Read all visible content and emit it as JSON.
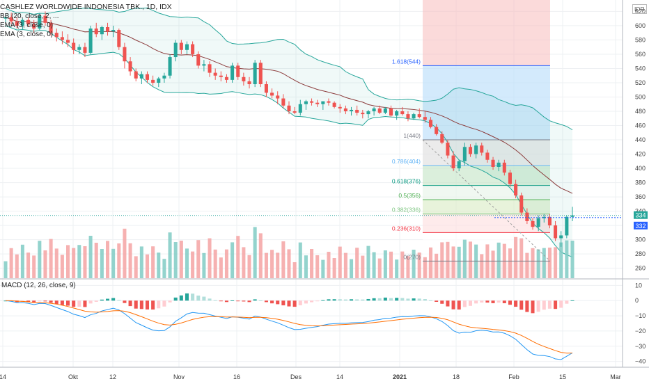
{
  "header": {
    "title": "CASHLEZ WORLDWIDE INDONESIA TBK., 1D, IDX",
    "currency": "IDR",
    "studies": [
      "BB (20, close, 2, ...",
      "EMA (3, close, 0)",
      "EMA (3, close, 0)"
    ]
  },
  "price_axis": {
    "ticks": [
      "620",
      "600",
      "580",
      "560",
      "540",
      "520",
      "500",
      "480",
      "460",
      "440",
      "420",
      "400",
      "380",
      "360",
      "340",
      "320",
      "300",
      "280",
      "260"
    ],
    "last_price_label": "334",
    "prev_price_label": "332"
  },
  "macd": {
    "label": "MACD (12, 26, close, 9)",
    "ticks": [
      "10",
      "0",
      "−10",
      "−20",
      "−30",
      "−40"
    ]
  },
  "time_axis": {
    "labels": [
      "14",
      "Okt",
      "12",
      "Nov",
      "16",
      "Des",
      "14",
      "2021",
      "18",
      "Feb",
      "15",
      "Mar"
    ]
  },
  "fibonacci": {
    "levels": [
      {
        "label": "1.618(544)",
        "price": 544,
        "color": "#2962ff"
      },
      {
        "label": "1(440)",
        "price": 440,
        "color": "#787b86"
      },
      {
        "label": "0.786(404)",
        "price": 404,
        "color": "#64b5f6"
      },
      {
        "label": "0.618(376)",
        "price": 376,
        "color": "#089981"
      },
      {
        "label": "0.5(356)",
        "price": 356,
        "color": "#4caf50"
      },
      {
        "label": "0.382(336)",
        "price": 336,
        "color": "#81c784"
      },
      {
        "label": "0.236(310)",
        "price": 310,
        "color": "#f23645"
      },
      {
        "label": "0(270)",
        "price": 270,
        "color": "#787b86"
      }
    ]
  },
  "colors": {
    "up": "#26a69a",
    "down": "#ef5350",
    "band": "#26a69a",
    "mid": "#8b3a3a",
    "macd_line": "#2196f3",
    "signal_line": "#ff6d00"
  },
  "chart_data": {
    "type": "candlestick",
    "title": "CASHLEZ WORLDWIDE INDONESIA TBK., 1D, IDX",
    "ylim": [
      246,
      636
    ],
    "note_units": "IDR",
    "ohlc": [
      [
        610,
        616,
        604,
        612
      ],
      [
        612,
        618,
        602,
        606
      ],
      [
        606,
        612,
        596,
        600
      ],
      [
        600,
        610,
        594,
        608
      ],
      [
        608,
        612,
        598,
        602
      ],
      [
        602,
        608,
        590,
        596
      ],
      [
        596,
        618,
        594,
        614
      ],
      [
        614,
        620,
        600,
        604
      ],
      [
        604,
        608,
        586,
        590
      ],
      [
        590,
        596,
        578,
        584
      ],
      [
        584,
        592,
        574,
        580
      ],
      [
        580,
        588,
        570,
        576
      ],
      [
        576,
        582,
        560,
        566
      ],
      [
        566,
        574,
        560,
        570
      ],
      [
        570,
        576,
        556,
        562
      ],
      [
        562,
        600,
        560,
        596
      ],
      [
        596,
        604,
        584,
        588
      ],
      [
        588,
        600,
        580,
        598
      ],
      [
        598,
        604,
        586,
        592
      ],
      [
        592,
        600,
        584,
        594
      ],
      [
        594,
        596,
        566,
        570
      ],
      [
        570,
        576,
        540,
        550
      ],
      [
        550,
        556,
        530,
        536
      ],
      [
        536,
        540,
        522,
        526
      ],
      [
        526,
        536,
        518,
        532
      ],
      [
        532,
        536,
        520,
        524
      ],
      [
        524,
        530,
        516,
        520
      ],
      [
        520,
        528,
        514,
        526
      ],
      [
        526,
        534,
        520,
        530
      ],
      [
        530,
        560,
        526,
        556
      ],
      [
        556,
        580,
        550,
        576
      ],
      [
        576,
        580,
        560,
        566
      ],
      [
        566,
        578,
        560,
        574
      ],
      [
        574,
        578,
        556,
        560
      ],
      [
        560,
        564,
        540,
        544
      ],
      [
        544,
        552,
        536,
        546
      ],
      [
        546,
        550,
        528,
        534
      ],
      [
        534,
        540,
        524,
        530
      ],
      [
        530,
        536,
        522,
        528
      ],
      [
        528,
        532,
        520,
        524
      ],
      [
        524,
        548,
        520,
        544
      ],
      [
        544,
        548,
        524,
        528
      ],
      [
        528,
        534,
        516,
        522
      ],
      [
        522,
        528,
        512,
        518
      ],
      [
        518,
        552,
        514,
        548
      ],
      [
        548,
        552,
        514,
        518
      ],
      [
        518,
        522,
        500,
        506
      ],
      [
        506,
        512,
        498,
        502
      ],
      [
        502,
        508,
        490,
        498
      ],
      [
        498,
        504,
        484,
        488
      ],
      [
        488,
        494,
        476,
        480
      ],
      [
        480,
        486,
        476,
        478
      ],
      [
        478,
        496,
        474,
        490
      ],
      [
        490,
        496,
        482,
        494
      ],
      [
        494,
        498,
        488,
        492
      ],
      [
        492,
        496,
        486,
        490
      ],
      [
        490,
        494,
        482,
        494
      ],
      [
        494,
        498,
        488,
        492
      ],
      [
        492,
        494,
        484,
        486
      ],
      [
        486,
        490,
        478,
        484
      ],
      [
        484,
        488,
        476,
        480
      ],
      [
        480,
        486,
        474,
        482
      ],
      [
        482,
        488,
        474,
        478
      ],
      [
        478,
        482,
        470,
        476
      ],
      [
        476,
        482,
        470,
        480
      ],
      [
        480,
        486,
        474,
        484
      ],
      [
        484,
        488,
        476,
        478
      ],
      [
        478,
        486,
        476,
        484
      ],
      [
        484,
        488,
        472,
        474
      ],
      [
        474,
        482,
        468,
        480
      ],
      [
        480,
        486,
        474,
        476
      ],
      [
        476,
        480,
        466,
        470
      ],
      [
        470,
        478,
        468,
        476
      ],
      [
        476,
        484,
        470,
        472
      ],
      [
        472,
        480,
        464,
        468
      ],
      [
        468,
        472,
        456,
        458
      ],
      [
        458,
        462,
        446,
        448
      ],
      [
        448,
        452,
        434,
        436
      ],
      [
        436,
        440,
        414,
        418
      ],
      [
        418,
        424,
        396,
        400
      ],
      [
        400,
        412,
        396,
        410
      ],
      [
        410,
        436,
        404,
        430
      ],
      [
        430,
        434,
        416,
        420
      ],
      [
        420,
        436,
        414,
        432
      ],
      [
        432,
        436,
        418,
        422
      ],
      [
        422,
        426,
        408,
        412
      ],
      [
        412,
        416,
        398,
        402
      ],
      [
        402,
        412,
        396,
        408
      ],
      [
        408,
        412,
        390,
        394
      ],
      [
        394,
        398,
        374,
        378
      ],
      [
        378,
        384,
        358,
        362
      ],
      [
        362,
        366,
        334,
        338
      ],
      [
        338,
        344,
        322,
        326
      ],
      [
        326,
        330,
        314,
        318
      ],
      [
        318,
        334,
        312,
        330
      ],
      [
        330,
        336,
        324,
        332
      ],
      [
        332,
        336,
        316,
        320
      ],
      [
        320,
        326,
        298,
        302
      ],
      [
        302,
        312,
        290,
        306
      ],
      [
        306,
        334,
        302,
        332
      ],
      [
        332,
        346,
        326,
        334
      ]
    ]
  }
}
